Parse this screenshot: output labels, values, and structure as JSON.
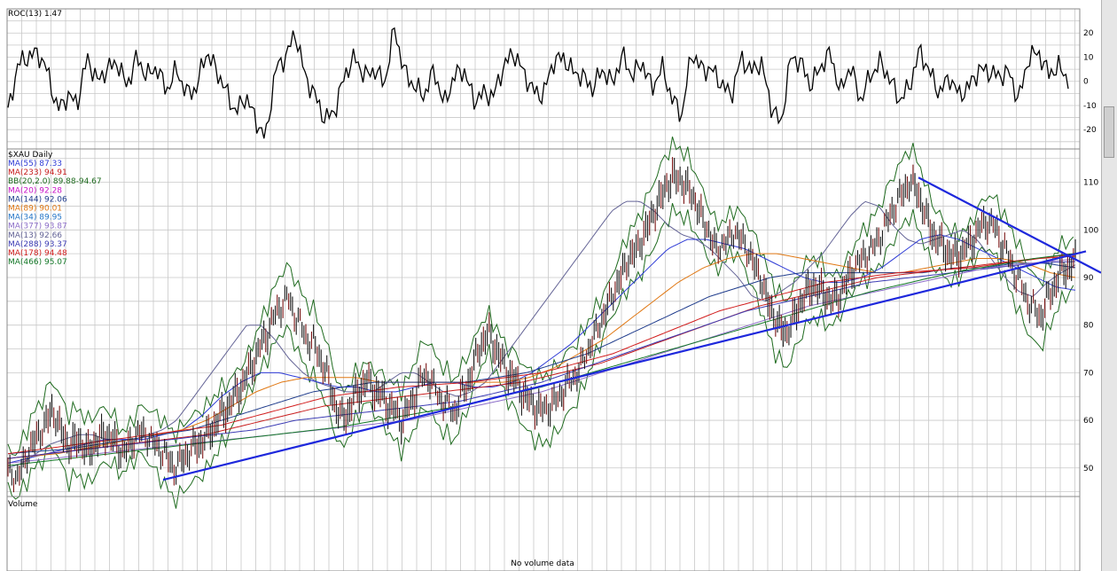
{
  "chart_data": [
    {
      "type": "line",
      "title": "ROC(13) 1.47",
      "indicator": "ROC(13)",
      "last_value": "1.47",
      "ylim": [
        -28,
        30
      ],
      "y_ticks": [
        20,
        10,
        0,
        -10,
        -20
      ],
      "grid": true,
      "color": "#000000",
      "samples": [
        -13,
        7,
        10,
        12,
        4,
        -12,
        -6,
        -9,
        10,
        0,
        5,
        8,
        -2,
        10,
        2,
        6,
        -4,
        5,
        -5,
        -3,
        12,
        5,
        -4,
        -13,
        -6,
        -16,
        -24,
        5,
        10,
        20,
        2,
        -6,
        -16,
        -12,
        3,
        10,
        2,
        5,
        -1,
        22,
        4,
        -2,
        -6,
        5,
        -10,
        2,
        5,
        -8,
        -5,
        -6,
        6,
        12,
        4,
        -4,
        -6,
        8,
        10,
        4,
        2,
        -3,
        5,
        -1,
        11,
        2,
        8,
        -3,
        6,
        -7,
        -14,
        12,
        5,
        5,
        -1,
        -6,
        10,
        4,
        8,
        -10,
        -18,
        10,
        8,
        -2,
        6,
        12,
        -5,
        7,
        -8,
        2,
        8,
        1,
        -8,
        -2,
        13,
        4,
        -5,
        2,
        -6,
        -2,
        5,
        4,
        2,
        4,
        -8,
        10,
        12,
        3,
        6,
        1
      ]
    },
    {
      "type": "candlestick",
      "title": "$XAU Daily",
      "ylim": [
        44,
        117
      ],
      "y_ticks": [
        110,
        100,
        90,
        80,
        70,
        60,
        50
      ],
      "grid": true,
      "legend_position": "top-left",
      "legend": [
        {
          "label": "MA(55) 87.33",
          "color": "#2f3cd6"
        },
        {
          "label": "MA(233) 94.91",
          "color": "#c81e1e"
        },
        {
          "label": "BB(20,2.0) 89.88-94.67",
          "color": "#1f6b1f"
        },
        {
          "label": "MA(20) 92.28",
          "color": "#c814c8"
        },
        {
          "label": "MA(144) 92.06",
          "color": "#1f3c8c"
        },
        {
          "label": "MA(89) 90.01",
          "color": "#e07814"
        },
        {
          "label": "MA(34) 89.95",
          "color": "#2878c8"
        },
        {
          "label": "MA(377) 93.87",
          "color": "#8c6ec8"
        },
        {
          "label": "MA(13) 92.66",
          "color": "#646496"
        },
        {
          "label": "MA(288) 93.37",
          "color": "#3c3cb4"
        },
        {
          "label": "MA(178) 94.48",
          "color": "#d21e1e"
        },
        {
          "label": "MA(466) 95.07",
          "color": "#147828"
        }
      ],
      "price_path": [
        50,
        48,
        52,
        56,
        58,
        62,
        58,
        54,
        56,
        53,
        55,
        57,
        56,
        53,
        55,
        58,
        57,
        55,
        53,
        50,
        52,
        54,
        55,
        57,
        60,
        62,
        65,
        68,
        72,
        76,
        80,
        84,
        86,
        82,
        78,
        76,
        72,
        66,
        60,
        62,
        66,
        68,
        66,
        64,
        62,
        60,
        63,
        68,
        70,
        66,
        64,
        62,
        66,
        70,
        76,
        78,
        74,
        70,
        68,
        65,
        63,
        62,
        63,
        65,
        68,
        70,
        74,
        78,
        82,
        86,
        90,
        94,
        96,
        100,
        104,
        108,
        111,
        110,
        108,
        104,
        100,
        96,
        98,
        100,
        98,
        94,
        90,
        84,
        80,
        78,
        82,
        86,
        88,
        87,
        85,
        86,
        90,
        93,
        95,
        97,
        100,
        104,
        107,
        110,
        108,
        102,
        98,
        96,
        94,
        95,
        97,
        100,
        102,
        100,
        96,
        92,
        88,
        84,
        82,
        86,
        90,
        92,
        93
      ],
      "ma_series": {
        "MA(13)": [
          50,
          51,
          53,
          55,
          56,
          57,
          57,
          56,
          56,
          56,
          57,
          58,
          60,
          64,
          68,
          72,
          76,
          80,
          80,
          77,
          73,
          70,
          68,
          67,
          66,
          66,
          66,
          68,
          70,
          70,
          68,
          66,
          65,
          66,
          68,
          72,
          76,
          80,
          84,
          88,
          92,
          96,
          100,
          104,
          106,
          106,
          104,
          101,
          99,
          98,
          96,
          93,
          90,
          86,
          85,
          87,
          89,
          92,
          95,
          99,
          103,
          106,
          105,
          101,
          98,
          97,
          98,
          99,
          100,
          98,
          94,
          90,
          87,
          86,
          89,
          91,
          92.66
        ],
        "MA(55)": [
          51,
          52,
          53,
          54,
          55,
          56,
          56,
          56,
          57,
          58,
          61,
          65,
          68,
          70,
          70,
          69,
          68,
          67,
          67,
          66,
          66,
          67,
          68,
          68,
          67,
          67,
          68,
          70,
          73,
          76,
          80,
          84,
          88,
          92,
          96,
          98,
          98,
          97,
          96,
          94,
          92,
          90,
          89,
          89,
          90,
          92,
          95,
          98,
          99,
          98,
          96,
          94,
          92,
          90,
          88,
          87.33
        ],
        "MA(89)": [
          52,
          52.5,
          53,
          54,
          55,
          56,
          57,
          58,
          60,
          63,
          66,
          68,
          69,
          69,
          69,
          68,
          68,
          68,
          68,
          68,
          68,
          69,
          71,
          74,
          77,
          81,
          85,
          89,
          92,
          94,
          95,
          95,
          94,
          93,
          92,
          91,
          91,
          92,
          93,
          94,
          94,
          93,
          91,
          90.01
        ],
        "MA(144)": [
          53,
          53.5,
          54,
          55,
          56,
          57,
          58,
          60,
          62,
          64,
          66,
          67,
          68,
          68,
          68,
          68,
          69,
          70,
          72,
          74,
          77,
          80,
          83,
          86,
          88,
          90,
          91,
          91,
          91,
          91,
          91,
          92,
          92,
          93,
          93,
          92.06
        ],
        "MA(178)": [
          53,
          54,
          55,
          56,
          57,
          58,
          59,
          61,
          63,
          65,
          66,
          67,
          67.5,
          68,
          69,
          70,
          72,
          74,
          77,
          80,
          83,
          85,
          87,
          89,
          90,
          91,
          91.5,
          92,
          93,
          94,
          94.48
        ],
        "MA(233)": [
          52,
          53,
          54,
          55,
          56,
          57,
          59,
          61,
          63,
          64,
          65,
          66,
          67,
          68,
          70,
          72,
          75,
          78,
          81,
          84,
          86,
          88,
          90,
          91,
          92,
          93,
          94,
          94.91
        ],
        "MA(288)": [
          52,
          53,
          54,
          55,
          56,
          57,
          58,
          60,
          61,
          62,
          63,
          64,
          66,
          68,
          71,
          74,
          77,
          80,
          83,
          85,
          87,
          89,
          90,
          91,
          92,
          93,
          93.37
        ],
        "MA(377)": [
          51,
          52,
          53,
          54,
          55,
          56,
          57,
          58,
          59,
          60,
          62,
          64,
          66,
          69,
          72,
          75,
          78,
          81,
          84,
          86,
          88,
          90,
          92,
          93,
          93.87
        ],
        "MA(466)": [
          50.5,
          51.5,
          52.5,
          53.5,
          54.5,
          55.5,
          56.5,
          57.5,
          58.5,
          60,
          61.5,
          63,
          65,
          67,
          69.5,
          72,
          74.5,
          77,
          79.5,
          82,
          84.5,
          87,
          89,
          91,
          92.5,
          94,
          95.07
        ]
      },
      "bollinger": {
        "label": "BB(20,2.0)",
        "lower_last": 89.88,
        "upper_last": 94.67,
        "width": 4
      },
      "trendlines": [
        {
          "name": "rising support",
          "color": "#1e28dc",
          "from": 47.5,
          "to": 95.5
        },
        {
          "name": "falling resistance",
          "color": "#1e28dc",
          "from": 111,
          "to": 91
        }
      ]
    },
    {
      "type": "bar",
      "title": "Volume",
      "message": "No volume data",
      "grid": true
    }
  ]
}
